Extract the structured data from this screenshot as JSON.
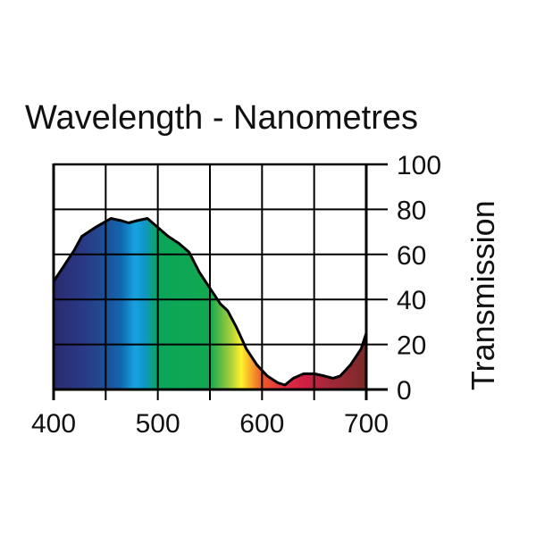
{
  "chart_data": {
    "type": "area",
    "title": "Wavelength - Nanometres",
    "xlabel": "Wavelength - Nanometres",
    "ylabel": "Transmission",
    "xlim": [
      400,
      700
    ],
    "ylim": [
      0,
      100
    ],
    "x_ticks": [
      400,
      500,
      600,
      700
    ],
    "x_tick_labels": [
      "400",
      "500",
      "600",
      "700"
    ],
    "x_grid": [
      400,
      450,
      500,
      550,
      600,
      650,
      700
    ],
    "y_ticks": [
      0,
      20,
      40,
      60,
      80,
      100
    ],
    "y_tick_labels": [
      "0",
      "20",
      "40",
      "60",
      "80",
      "100"
    ],
    "y_axis_side": "right",
    "grid": true,
    "series": [
      {
        "name": "Transmission",
        "x": [
          400,
          410,
          420,
          427,
          440,
          455,
          465,
          472,
          480,
          490,
          500,
          510,
          520,
          530,
          540,
          550,
          560,
          567,
          575,
          585,
          595,
          605,
          615,
          622,
          630,
          640,
          650,
          660,
          668,
          675,
          685,
          695,
          700
        ],
        "y": [
          48,
          55,
          62,
          68,
          72,
          76,
          75,
          74,
          75,
          76,
          72,
          68,
          65,
          61,
          52,
          45,
          38,
          35,
          28,
          18,
          11,
          6,
          3,
          2,
          5,
          7,
          7,
          6,
          5,
          6,
          11,
          18,
          25
        ]
      }
    ],
    "fill_spectrum": [
      {
        "nm": 400,
        "color": "#2b2a6e"
      },
      {
        "nm": 430,
        "color": "#2a3a86"
      },
      {
        "nm": 450,
        "color": "#1e4f95"
      },
      {
        "nm": 465,
        "color": "#1268b0"
      },
      {
        "nm": 478,
        "color": "#16a3e0"
      },
      {
        "nm": 487,
        "color": "#1196c8"
      },
      {
        "nm": 500,
        "color": "#0aa65a"
      },
      {
        "nm": 550,
        "color": "#13a850"
      },
      {
        "nm": 570,
        "color": "#a9cf3c"
      },
      {
        "nm": 580,
        "color": "#fff22a"
      },
      {
        "nm": 590,
        "color": "#f7a12a"
      },
      {
        "nm": 600,
        "color": "#ee5a28"
      },
      {
        "nm": 620,
        "color": "#e03040"
      },
      {
        "nm": 640,
        "color": "#d21f45"
      },
      {
        "nm": 660,
        "color": "#a8283a"
      },
      {
        "nm": 700,
        "color": "#7a2a28"
      }
    ],
    "line_color": "#000000",
    "grid_color": "#000000"
  }
}
